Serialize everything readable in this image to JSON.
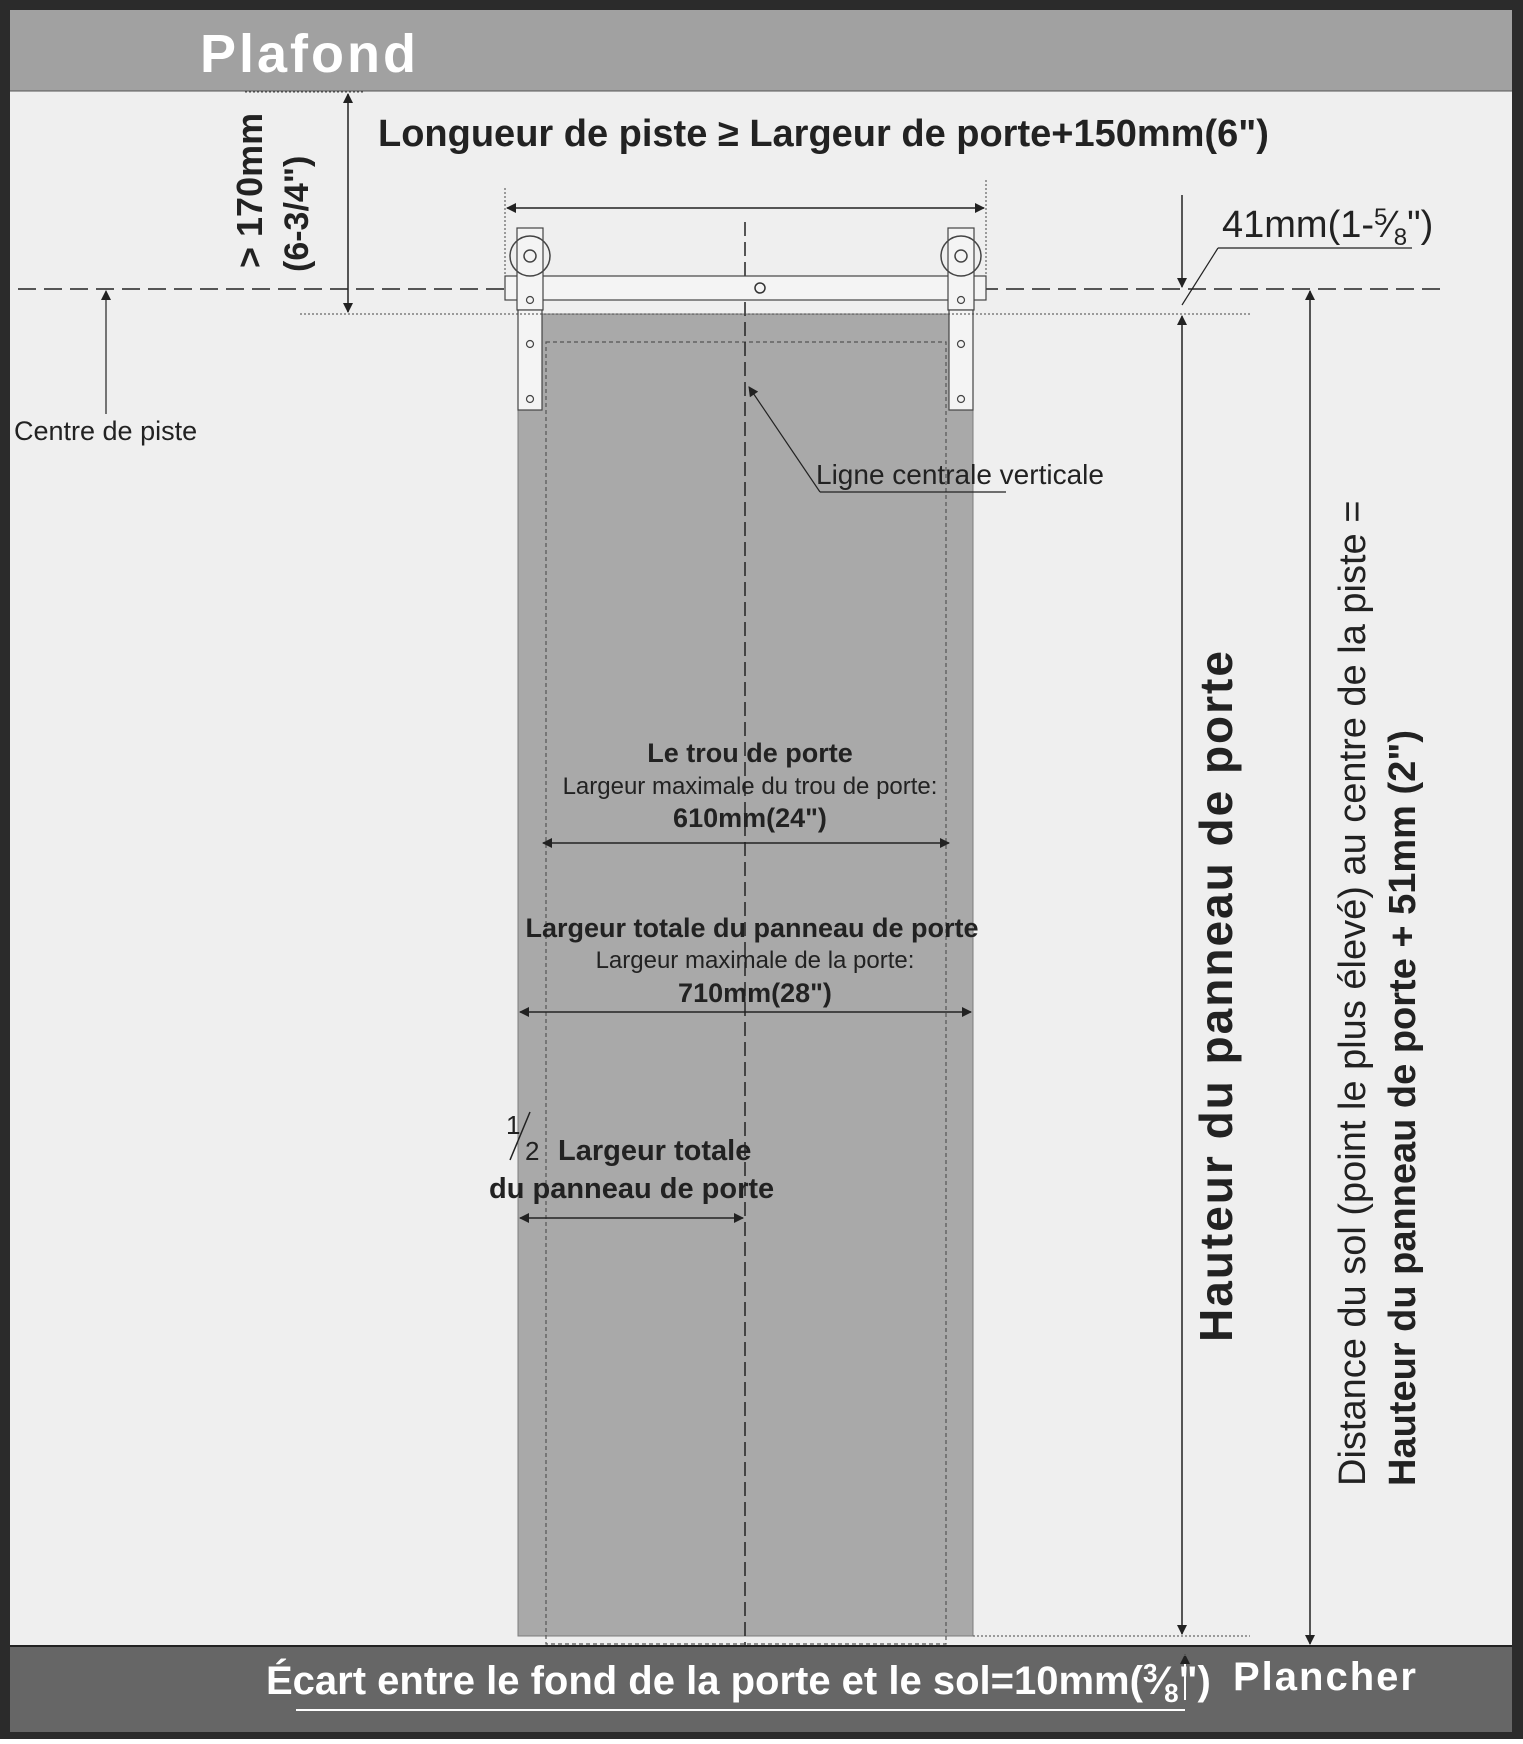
{
  "colors": {
    "frame": "#2b2b2b",
    "ceiling": "#a1a1a1",
    "floor": "#666666",
    "wall": "#efefef",
    "door": "#a9a9a9",
    "hardware": "#f4f4f4",
    "ink": "#222222",
    "band_text": "#ffffff"
  },
  "ceiling_label": "Plafond",
  "floor_label": "Plancher",
  "track_length_label": "Longueur de piste ≥ Largeur de porte+150mm(6\")",
  "clearance": {
    "value": "> 170mm",
    "imperial": "(6-3/4\")"
  },
  "track_height": {
    "prefix": "41mm(1-",
    "num": "5",
    "den": "8",
    "suffix": "\")"
  },
  "track_center_label": "Centre de piste",
  "vertical_center_label": "Ligne centrale verticale",
  "door_hole": {
    "title": "Le trou de porte",
    "subtitle": "Largeur maximale du trou de porte:",
    "value": "610mm(24\")"
  },
  "panel_width": {
    "title": "Largeur totale du panneau de porte",
    "subtitle": "Largeur maximale de la porte:",
    "value": "710mm(28\")"
  },
  "half_width": {
    "fraction_num": "1",
    "fraction_den": "2",
    "line1": "Largeur totale",
    "line2": "du panneau de porte"
  },
  "door_height_label": "Hauteur du panneau de porte",
  "floor_distance": {
    "line1": "Distance du sol (point le plus élevé) au centre de la piste =",
    "line2": "Hauteur du panneau de porte + 51mm (2\")"
  },
  "gap": {
    "prefix": "Écart entre le fond de la porte et le sol=10mm(",
    "num": "3",
    "den": "8",
    "suffix": "\")"
  }
}
